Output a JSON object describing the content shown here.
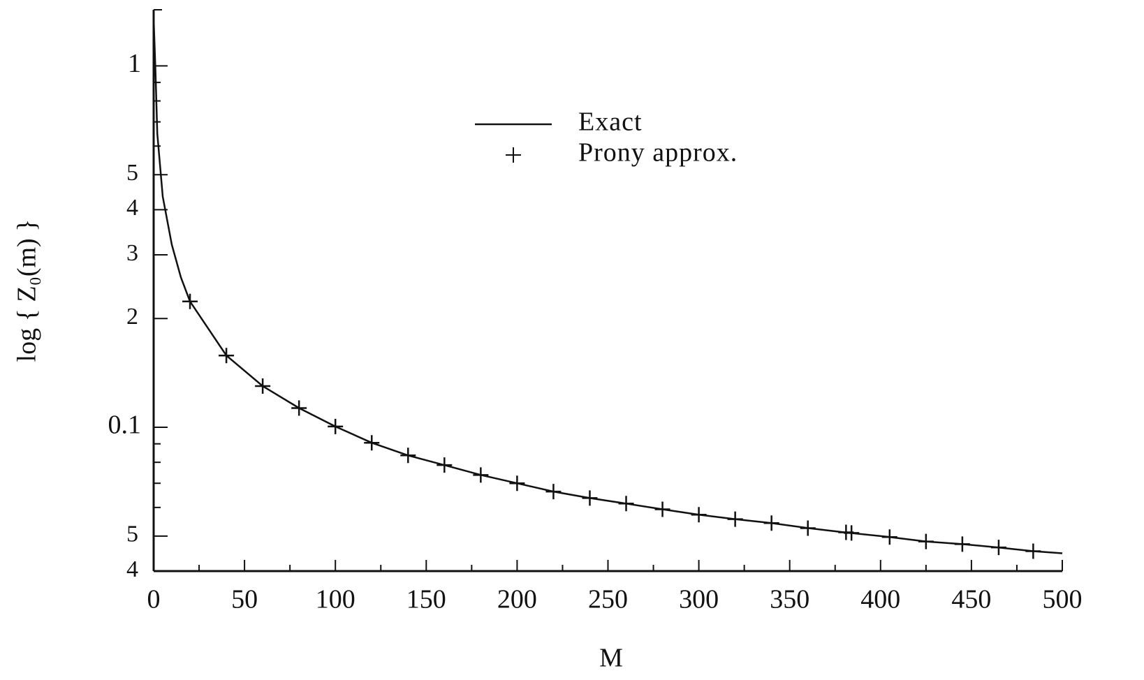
{
  "chart_data": {
    "type": "line",
    "x_label": "M",
    "y_label": "log { Z₀(m) }",
    "log_y": true,
    "xlim": [
      0,
      500
    ],
    "xticks": [
      0,
      50,
      100,
      150,
      200,
      250,
      300,
      350,
      400,
      450,
      500
    ],
    "x_minor_ticks": [
      25,
      75,
      125,
      175,
      225,
      275,
      325,
      375,
      425,
      475
    ],
    "ylim": [
      0.04,
      1.43
    ],
    "yticks": [
      1,
      {
        "value": 0.5,
        "label": "5"
      },
      {
        "value": 0.4,
        "label": "4"
      },
      {
        "value": 0.3,
        "label": "3"
      },
      {
        "value": 0.2,
        "label": "2"
      },
      0.1,
      {
        "value": 0.05,
        "label": "5"
      },
      {
        "value": 0.04,
        "label": "4"
      }
    ],
    "y_minor_ticks": [
      0.9,
      0.8,
      0.7,
      0.6,
      0.09,
      0.08,
      0.07,
      0.06
    ],
    "legend": "top-center",
    "series": [
      {
        "name": "Exact",
        "style": "line",
        "color": "#111111",
        "x": [
          0,
          1,
          2,
          5,
          10,
          15,
          20,
          40,
          60,
          80,
          100,
          120,
          140,
          160,
          180,
          200,
          220,
          240,
          260,
          280,
          300,
          320,
          340,
          360,
          380,
          405,
          425,
          445,
          465,
          484,
          500
        ],
        "values": [
          1.35,
          0.97,
          0.65,
          0.435,
          0.32,
          0.26,
          0.223,
          0.158,
          0.13,
          0.113,
          0.1005,
          0.0906,
          0.0836,
          0.0786,
          0.0738,
          0.07,
          0.0664,
          0.0637,
          0.0615,
          0.0593,
          0.0573,
          0.0557,
          0.0543,
          0.0526,
          0.0512,
          0.0497,
          0.0483,
          0.0475,
          0.0465,
          0.0454,
          0.0448
        ]
      },
      {
        "name": "Prony approx.",
        "style": "marker",
        "color": "#111111",
        "x": [
          20,
          40,
          60,
          80,
          100,
          120,
          140,
          160,
          180,
          200,
          220,
          240,
          260,
          280,
          300,
          320,
          340,
          360,
          381,
          384,
          405,
          425,
          445,
          465,
          484
        ],
        "values": [
          0.223,
          0.158,
          0.13,
          0.113,
          0.1005,
          0.0906,
          0.0836,
          0.0786,
          0.0738,
          0.07,
          0.0664,
          0.0637,
          0.0615,
          0.0593,
          0.0573,
          0.0557,
          0.0543,
          0.0526,
          0.0512,
          0.051,
          0.0497,
          0.0483,
          0.0475,
          0.0465,
          0.0454
        ]
      }
    ]
  }
}
